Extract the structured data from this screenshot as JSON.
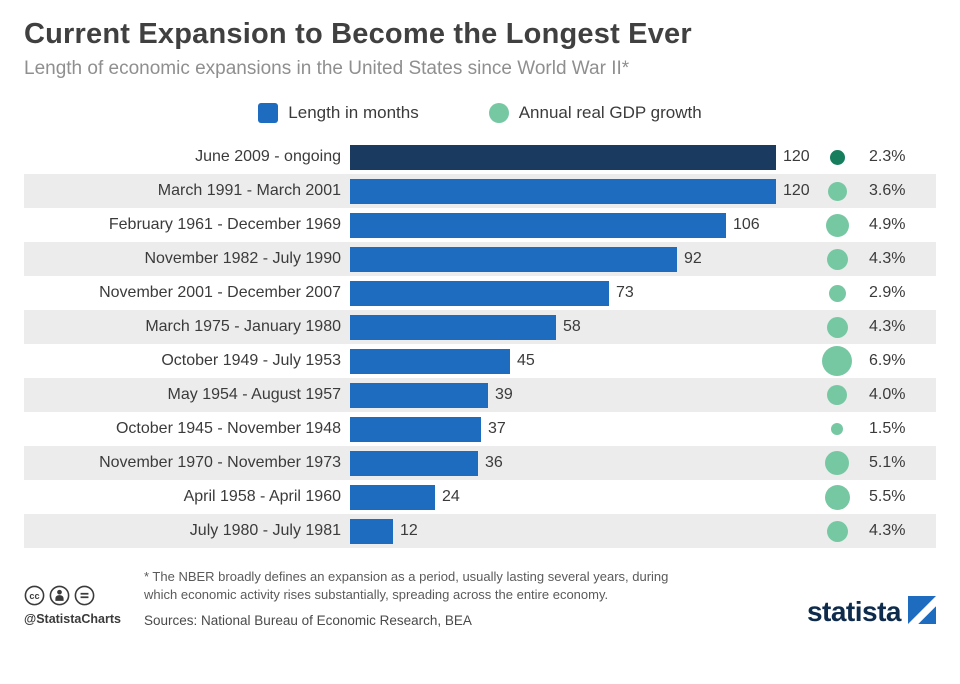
{
  "header": {
    "title": "Current Expansion to Become the Longest Ever",
    "subtitle": "Length of economic expansions in the United States since World War II*"
  },
  "legend": {
    "months_label": "Length in months",
    "gdp_label": "Annual real GDP growth"
  },
  "chart_data": {
    "type": "bar",
    "orientation": "horizontal",
    "title": "Current Expansion to Become the Longest Ever",
    "subtitle": "Length of economic expansions in the United States since World War II*",
    "xlim": [
      0,
      120
    ],
    "grid": false,
    "legend_position": "top-center",
    "categories": [
      "June 2009 - ongoing",
      "March 1991 - March 2001",
      "February 1961 - December 1969",
      "November 1982 - July 1990",
      "November 2001 - December 2007",
      "March 1975 - January 1980",
      "October 1949 - July 1953",
      "May 1954 - August 1957",
      "October 1945 - November 1948",
      "November 1970 - November 1973",
      "April 1958 - April 1960",
      "July 1980 - July 1981"
    ],
    "series": [
      {
        "name": "Length in months",
        "values": [
          120,
          120,
          106,
          92,
          73,
          58,
          45,
          39,
          37,
          36,
          24,
          12
        ]
      },
      {
        "name": "Annual real GDP growth (%)",
        "values": [
          2.3,
          3.6,
          4.9,
          4.3,
          2.9,
          4.3,
          6.9,
          4.0,
          1.5,
          5.1,
          5.5,
          4.3
        ]
      }
    ],
    "value_labels_months": [
      "120",
      "120",
      "106",
      "92",
      "73",
      "58",
      "45",
      "39",
      "37",
      "36",
      "24",
      "12"
    ],
    "value_labels_gdp": [
      "2.3%",
      "3.6%",
      "4.9%",
      "4.3%",
      "2.9%",
      "4.3%",
      "6.9%",
      "4.0%",
      "1.5%",
      "5.1%",
      "5.5%",
      "4.3%"
    ],
    "highlight_index": 0
  },
  "colors": {
    "bar_blue": "#1d6cc0",
    "bar_dark_navy": "#1b3a5f",
    "dot_green": "#76c8a2",
    "dot_dark_green": "#167d5d",
    "stripe_gray": "#ececec"
  },
  "footer": {
    "footnote": "* The NBER broadly defines an expansion as a period, usually lasting several years, during which economic activity rises substantially, spreading across the entire economy.",
    "sources": "Sources: National Bureau of Economic Research, BEA",
    "handle": "@StatistaCharts",
    "logo_text": "statista"
  }
}
